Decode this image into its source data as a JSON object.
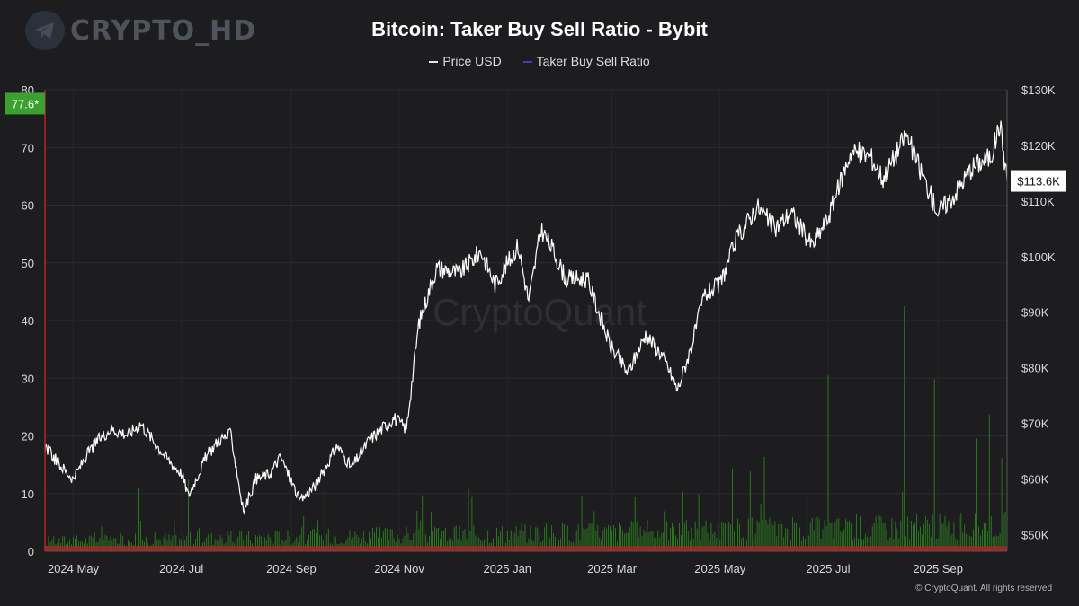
{
  "watermark": {
    "text": "CRYPTO_HD",
    "icon": "telegram-icon"
  },
  "header": {
    "title": "Bitcoin: Taker Buy Sell Ratio - Bybit",
    "legend": [
      {
        "label": "Price USD",
        "color": "#e6e6e6"
      },
      {
        "label": "Taker Buy Sell Ratio",
        "color": "#3b3bd6"
      }
    ]
  },
  "footer": {
    "credit": "© CryptoQuant. All rights reserved"
  },
  "background_watermark": "CryptoQuant",
  "colors": {
    "background": "#1d1d20",
    "price": "#ffffff",
    "ratio_up": "#2e8b1e",
    "ratio_down": "#b02525",
    "badge_green": "#3aa02e"
  },
  "chart_data": {
    "type": "line",
    "title": "Bitcoin: Taker Buy Sell Ratio - Bybit",
    "x_ticks": [
      "2024 May",
      "2024 Jul",
      "2024 Sep",
      "2024 Nov",
      "2025 Jan",
      "2025 Mar",
      "2025 May",
      "2025 Jul",
      "2025 Sep"
    ],
    "left_axis": {
      "ticks": [
        "0",
        "10",
        "20",
        "30",
        "40",
        "50",
        "60",
        "70",
        "80"
      ],
      "ylim": [
        0,
        80
      ]
    },
    "right_axis": {
      "ticks": [
        "$50K",
        "$60K",
        "$70K",
        "$80K",
        "$90K",
        "$100K",
        "$110K",
        "$120K",
        "$130K"
      ],
      "ylim": [
        47000,
        130000
      ]
    },
    "current_ratio_label": "77.6*",
    "current_price_label": "$113.6K",
    "series": [
      {
        "name": "Price USD",
        "axis": "right",
        "x": [
          "2024-04-15",
          "2024-04-22",
          "2024-05-01",
          "2024-05-08",
          "2024-05-15",
          "2024-05-22",
          "2024-06-01",
          "2024-06-08",
          "2024-06-15",
          "2024-06-22",
          "2024-07-01",
          "2024-07-05",
          "2024-07-15",
          "2024-07-22",
          "2024-07-29",
          "2024-08-05",
          "2024-08-12",
          "2024-08-20",
          "2024-08-26",
          "2024-09-06",
          "2024-09-15",
          "2024-09-27",
          "2024-10-05",
          "2024-10-15",
          "2024-10-29",
          "2024-11-05",
          "2024-11-12",
          "2024-11-22",
          "2024-12-05",
          "2024-12-17",
          "2024-12-25",
          "2025-01-07",
          "2025-01-13",
          "2025-01-20",
          "2025-01-27",
          "2025-02-03",
          "2025-02-15",
          "2025-02-28",
          "2025-03-10",
          "2025-03-20",
          "2025-03-30",
          "2025-04-07",
          "2025-04-15",
          "2025-04-22",
          "2025-05-01",
          "2025-05-10",
          "2025-05-22",
          "2025-06-01",
          "2025-06-10",
          "2025-06-22",
          "2025-07-01",
          "2025-07-14",
          "2025-07-25",
          "2025-08-01",
          "2025-08-14",
          "2025-08-24",
          "2025-09-01",
          "2025-09-10",
          "2025-09-20",
          "2025-10-01",
          "2025-10-06",
          "2025-10-10"
        ],
        "values": [
          66000,
          63000,
          60000,
          64000,
          67000,
          69000,
          68000,
          70000,
          67000,
          64000,
          61000,
          57000,
          64000,
          67000,
          68000,
          54000,
          60000,
          61000,
          64000,
          56000,
          59000,
          66000,
          62000,
          67000,
          71000,
          69000,
          88000,
          98000,
          97000,
          101000,
          95000,
          102000,
          92000,
          105000,
          101000,
          96000,
          96000,
          84000,
          79000,
          86000,
          82000,
          76000,
          84000,
          93000,
          95000,
          103000,
          109000,
          105000,
          108000,
          102000,
          107000,
          119000,
          118000,
          114000,
          122000,
          114000,
          108000,
          111000,
          116000,
          118000,
          124000,
          113600
        ]
      },
      {
        "name": "Taker Buy Sell Ratio",
        "axis": "left",
        "x": [
          "2024-06-07",
          "2024-07-05",
          "2024-09-20",
          "2024-12-10",
          "2025-02-12",
          "2025-04-10",
          "2025-07-01",
          "2025-08-13",
          "2025-08-30",
          "2025-09-30",
          "2025-10-10"
        ],
        "values": [
          10.9,
          12.4,
          10.5,
          10.8,
          9.5,
          10.2,
          30.5,
          42.5,
          29.8,
          23.7,
          77.6
        ]
      }
    ]
  }
}
